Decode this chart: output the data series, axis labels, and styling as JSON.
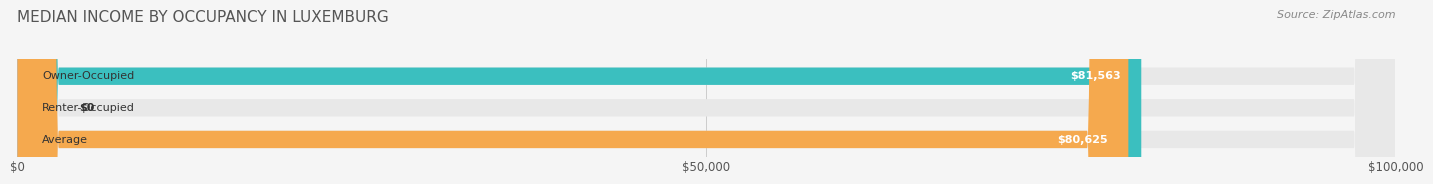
{
  "title": "MEDIAN INCOME BY OCCUPANCY IN LUXEMBURG",
  "source": "Source: ZipAtlas.com",
  "categories": [
    "Owner-Occupied",
    "Renter-Occupied",
    "Average"
  ],
  "values": [
    81563,
    0,
    80625
  ],
  "bar_colors": [
    "#3bbfbf",
    "#c4aed4",
    "#f5a94e"
  ],
  "bar_labels": [
    "$81,563",
    "$0",
    "$80,625"
  ],
  "xlim": [
    0,
    100000
  ],
  "xticks": [
    0,
    50000,
    100000
  ],
  "xtick_labels": [
    "$0",
    "$50,000",
    "$100,000"
  ],
  "title_fontsize": 11,
  "source_fontsize": 8,
  "bar_height": 0.55,
  "background_color": "#f5f5f5",
  "bar_background_color": "#e8e8e8"
}
